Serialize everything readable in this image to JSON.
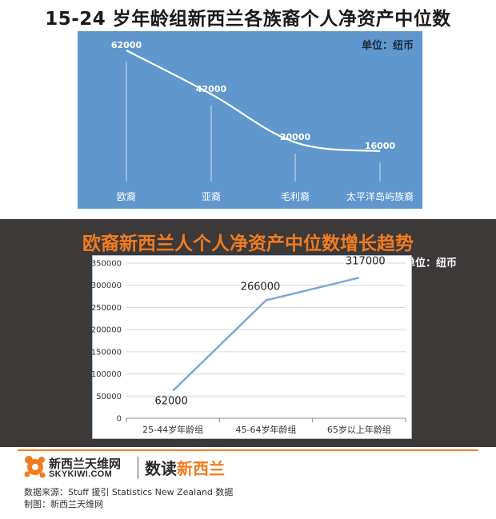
{
  "chart_data": [
    {
      "type": "line",
      "title": "15-24 岁年龄组新西兰各族裔个人净资产中位数",
      "unit_label": "单位：纽币",
      "categories": [
        "欧裔",
        "亚裔",
        "毛利裔",
        "太平洋岛屿族裔"
      ],
      "values": [
        62000,
        42000,
        20000,
        16000
      ],
      "data_labels": [
        "62000",
        "42000",
        "20000",
        "16000"
      ],
      "background": "#6097cd",
      "line_color": "#ffffff",
      "grid": false
    },
    {
      "type": "line",
      "title": "欧裔新西兰人个人净资产中位数增长趋势",
      "unit_label": "单位：纽币",
      "categories": [
        "25-44岁年龄组",
        "45-64岁年龄组",
        "65岁以上年龄组"
      ],
      "values": [
        62000,
        266000,
        317000
      ],
      "data_labels": [
        "62000",
        "266000",
        "317000"
      ],
      "ylim": [
        0,
        350000
      ],
      "yticks": [
        0,
        50000,
        100000,
        150000,
        200000,
        250000,
        300000,
        350000
      ],
      "ytick_labels": [
        "0",
        "50000",
        "100000",
        "150000",
        "200000",
        "250000",
        "300000",
        "350000"
      ],
      "line_color": "#7ea7d7",
      "grid": true
    }
  ],
  "footer": {
    "logo_cn": "新西兰天维网",
    "logo_en": "SKYKIWI.COM",
    "slogan_part1": "数读",
    "slogan_part2": "新西兰",
    "source_line": "数据来源：Stuff 援引 Statistics New Zealand 数据",
    "credit_line": "制图：新西兰天维网"
  },
  "colors": {
    "accent_orange": "#f07c22",
    "dark_panel": "#3d3938",
    "panel_blue": "#6097cd"
  }
}
